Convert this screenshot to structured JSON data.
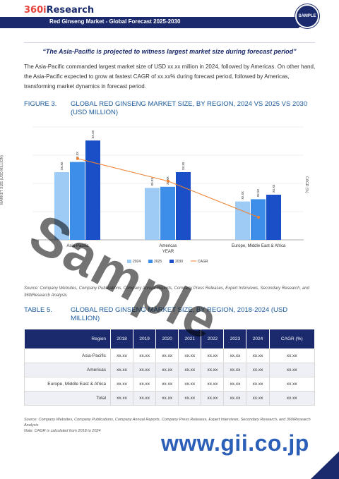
{
  "header": {
    "logo_num": "360i",
    "logo_text": "Research",
    "report_title": "Red Ginseng Market - Global Forecast 2025-2030",
    "seal_text": "SAMPLE"
  },
  "quote": "“The Asia-Pacific is projected to witness largest market size during forecast period”",
  "paragraph": "The Asia-Pacific commanded largest market size of USD xx.xx million in 2024, followed by Americas. On other hand, the Asia-Pacific expected to grow at fastest CAGR of xx.xx% during forecast period, followed by Americas, transforming market dynamics in forecast period.",
  "figure": {
    "label": "FIGURE 3.",
    "title": "GLOBAL RED GINSENG MARKET SIZE, BY REGION, 2024 VS 2025 VS 2030 (USD MILLION)",
    "source": "Source: Company Websites, Company Publications, Company Annual Reports, Company Press Releases, Expert Interviews, Secondary Research, and 360iResearch Analysis"
  },
  "chart_data": {
    "type": "bar",
    "categories": [
      "Asia-Pacific",
      "Americas",
      "Europe, Middle East & Africa"
    ],
    "series": [
      {
        "name": "2024",
        "color": "#9ecbf5",
        "values": [
          60,
          46,
          34
        ]
      },
      {
        "name": "2025",
        "color": "#3d8ee8",
        "values": [
          69,
          47,
          36
        ]
      },
      {
        "name": "2030",
        "color": "#1a4fc7",
        "values": [
          88,
          60,
          40
        ]
      }
    ],
    "cagr_line": {
      "name": "CAGR",
      "color": "#f08030",
      "values": [
        0.72,
        0.52,
        0.2
      ]
    },
    "data_label": "xx.xx",
    "xlabel": "YEAR",
    "ylabel": "MARKET SIZE (USD MILLION)",
    "y2label": "CAGR (%)",
    "ylim": [
      0,
      100
    ],
    "grid": true,
    "legend": "bottom"
  },
  "table": {
    "label": "TABLE 5.",
    "title": "GLOBAL RED GINSENG MARKET SIZE, BY REGION, 2018-2024 (USD MILLION)",
    "headers": [
      "Region",
      "2018",
      "2019",
      "2020",
      "2021",
      "2022",
      "2023",
      "2024",
      "CAGR (%)"
    ],
    "rows": [
      [
        "Asia-Pacific",
        "xx.xx",
        "xx.xx",
        "xx.xx",
        "xx.xx",
        "xx.xx",
        "xx.xx",
        "xx.xx",
        "xx.xx"
      ],
      [
        "Americas",
        "xx.xx",
        "xx.xx",
        "xx.xx",
        "xx.xx",
        "xx.xx",
        "xx.xx",
        "xx.xx",
        "xx.xx"
      ],
      [
        "Europe, Middle East & Africa",
        "xx.xx",
        "xx.xx",
        "xx.xx",
        "xx.xx",
        "xx.xx",
        "xx.xx",
        "xx.xx",
        "xx.xx"
      ],
      [
        "Total",
        "xx.xx",
        "xx.xx",
        "xx.xx",
        "xx.xx",
        "xx.xx",
        "xx.xx",
        "xx.xx",
        "xx.xx"
      ]
    ],
    "source": "Source: Company Websites, Company Publications, Company Annual Reports, Company Press Releases, Expert Interviews, Secondary Research, and 360iResearch Analysis",
    "note": "Note: CAGR is calculated from 2018 to 2024"
  },
  "watermarks": {
    "sample": "Sample",
    "gii": "www.gii.co.jp"
  }
}
